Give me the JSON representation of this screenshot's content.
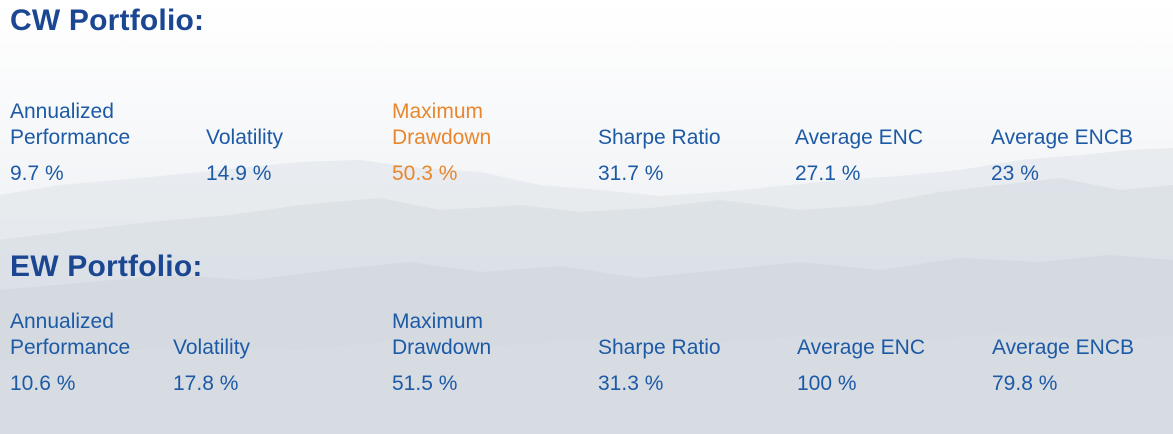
{
  "sections": [
    {
      "title": "CW Portfolio:",
      "metrics": [
        {
          "label": "Annualized\nPerformance",
          "value": "9.7 %",
          "highlight": false
        },
        {
          "label": "Volatility",
          "value": "14.9 %",
          "highlight": false
        },
        {
          "label": "Maximum\nDrawdown",
          "value": "50.3 %",
          "highlight": true
        },
        {
          "label": "Sharpe Ratio",
          "value": "31.7 %",
          "highlight": false
        },
        {
          "label": "Average ENC",
          "value": "27.1 %",
          "highlight": false
        },
        {
          "label": "Average ENCB",
          "value": "23 %",
          "highlight": false
        }
      ]
    },
    {
      "title": "EW Portfolio:",
      "metrics": [
        {
          "label": "Annualized\nPerformance",
          "value": "10.6 %",
          "highlight": false
        },
        {
          "label": "Volatility",
          "value": "17.8 %",
          "highlight": false
        },
        {
          "label": "Maximum\nDrawdown",
          "value": "51.5 %",
          "highlight": false
        },
        {
          "label": "Sharpe Ratio",
          "value": "31.3 %",
          "highlight": false
        },
        {
          "label": "Average ENC",
          "value": "100 %",
          "highlight": false
        },
        {
          "label": "Average ENCB",
          "value": "79.8 %",
          "highlight": false
        }
      ]
    }
  ],
  "colors": {
    "title": "#1a4692",
    "text": "#1d5aa6",
    "highlight": "#e8872e"
  }
}
